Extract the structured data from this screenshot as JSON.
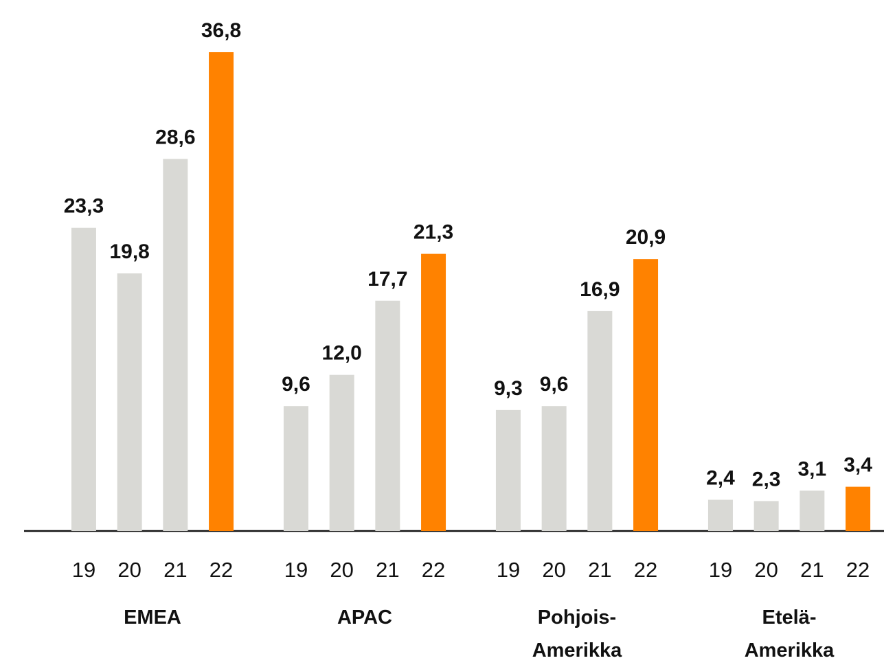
{
  "chart_data": {
    "type": "bar",
    "categories": [
      "EMEA",
      "APAC",
      "Pohjois-\nAmerikka",
      "Etelä-\nAmerikka"
    ],
    "series": [
      {
        "name": "19",
        "color": "#d9d9d5",
        "values": [
          23.3,
          9.6,
          9.3,
          2.4
        ],
        "value_labels": [
          "23,3",
          "9,6",
          "9,3",
          "2,4"
        ]
      },
      {
        "name": "20",
        "color": "#d9d9d5",
        "values": [
          19.8,
          12.0,
          9.6,
          2.3
        ],
        "value_labels": [
          "19,8",
          "12,0",
          "9,6",
          "2,3"
        ]
      },
      {
        "name": "21",
        "color": "#d9d9d5",
        "values": [
          28.6,
          17.7,
          16.9,
          3.1
        ],
        "value_labels": [
          "28,6",
          "17,7",
          "16,9",
          "3,1"
        ]
      },
      {
        "name": "22",
        "color": "#ff8200",
        "values": [
          36.8,
          21.3,
          20.9,
          3.4
        ],
        "value_labels": [
          "36,8",
          "21,3",
          "20,9",
          "3,4"
        ]
      }
    ],
    "ylim": [
      0,
      40
    ]
  }
}
